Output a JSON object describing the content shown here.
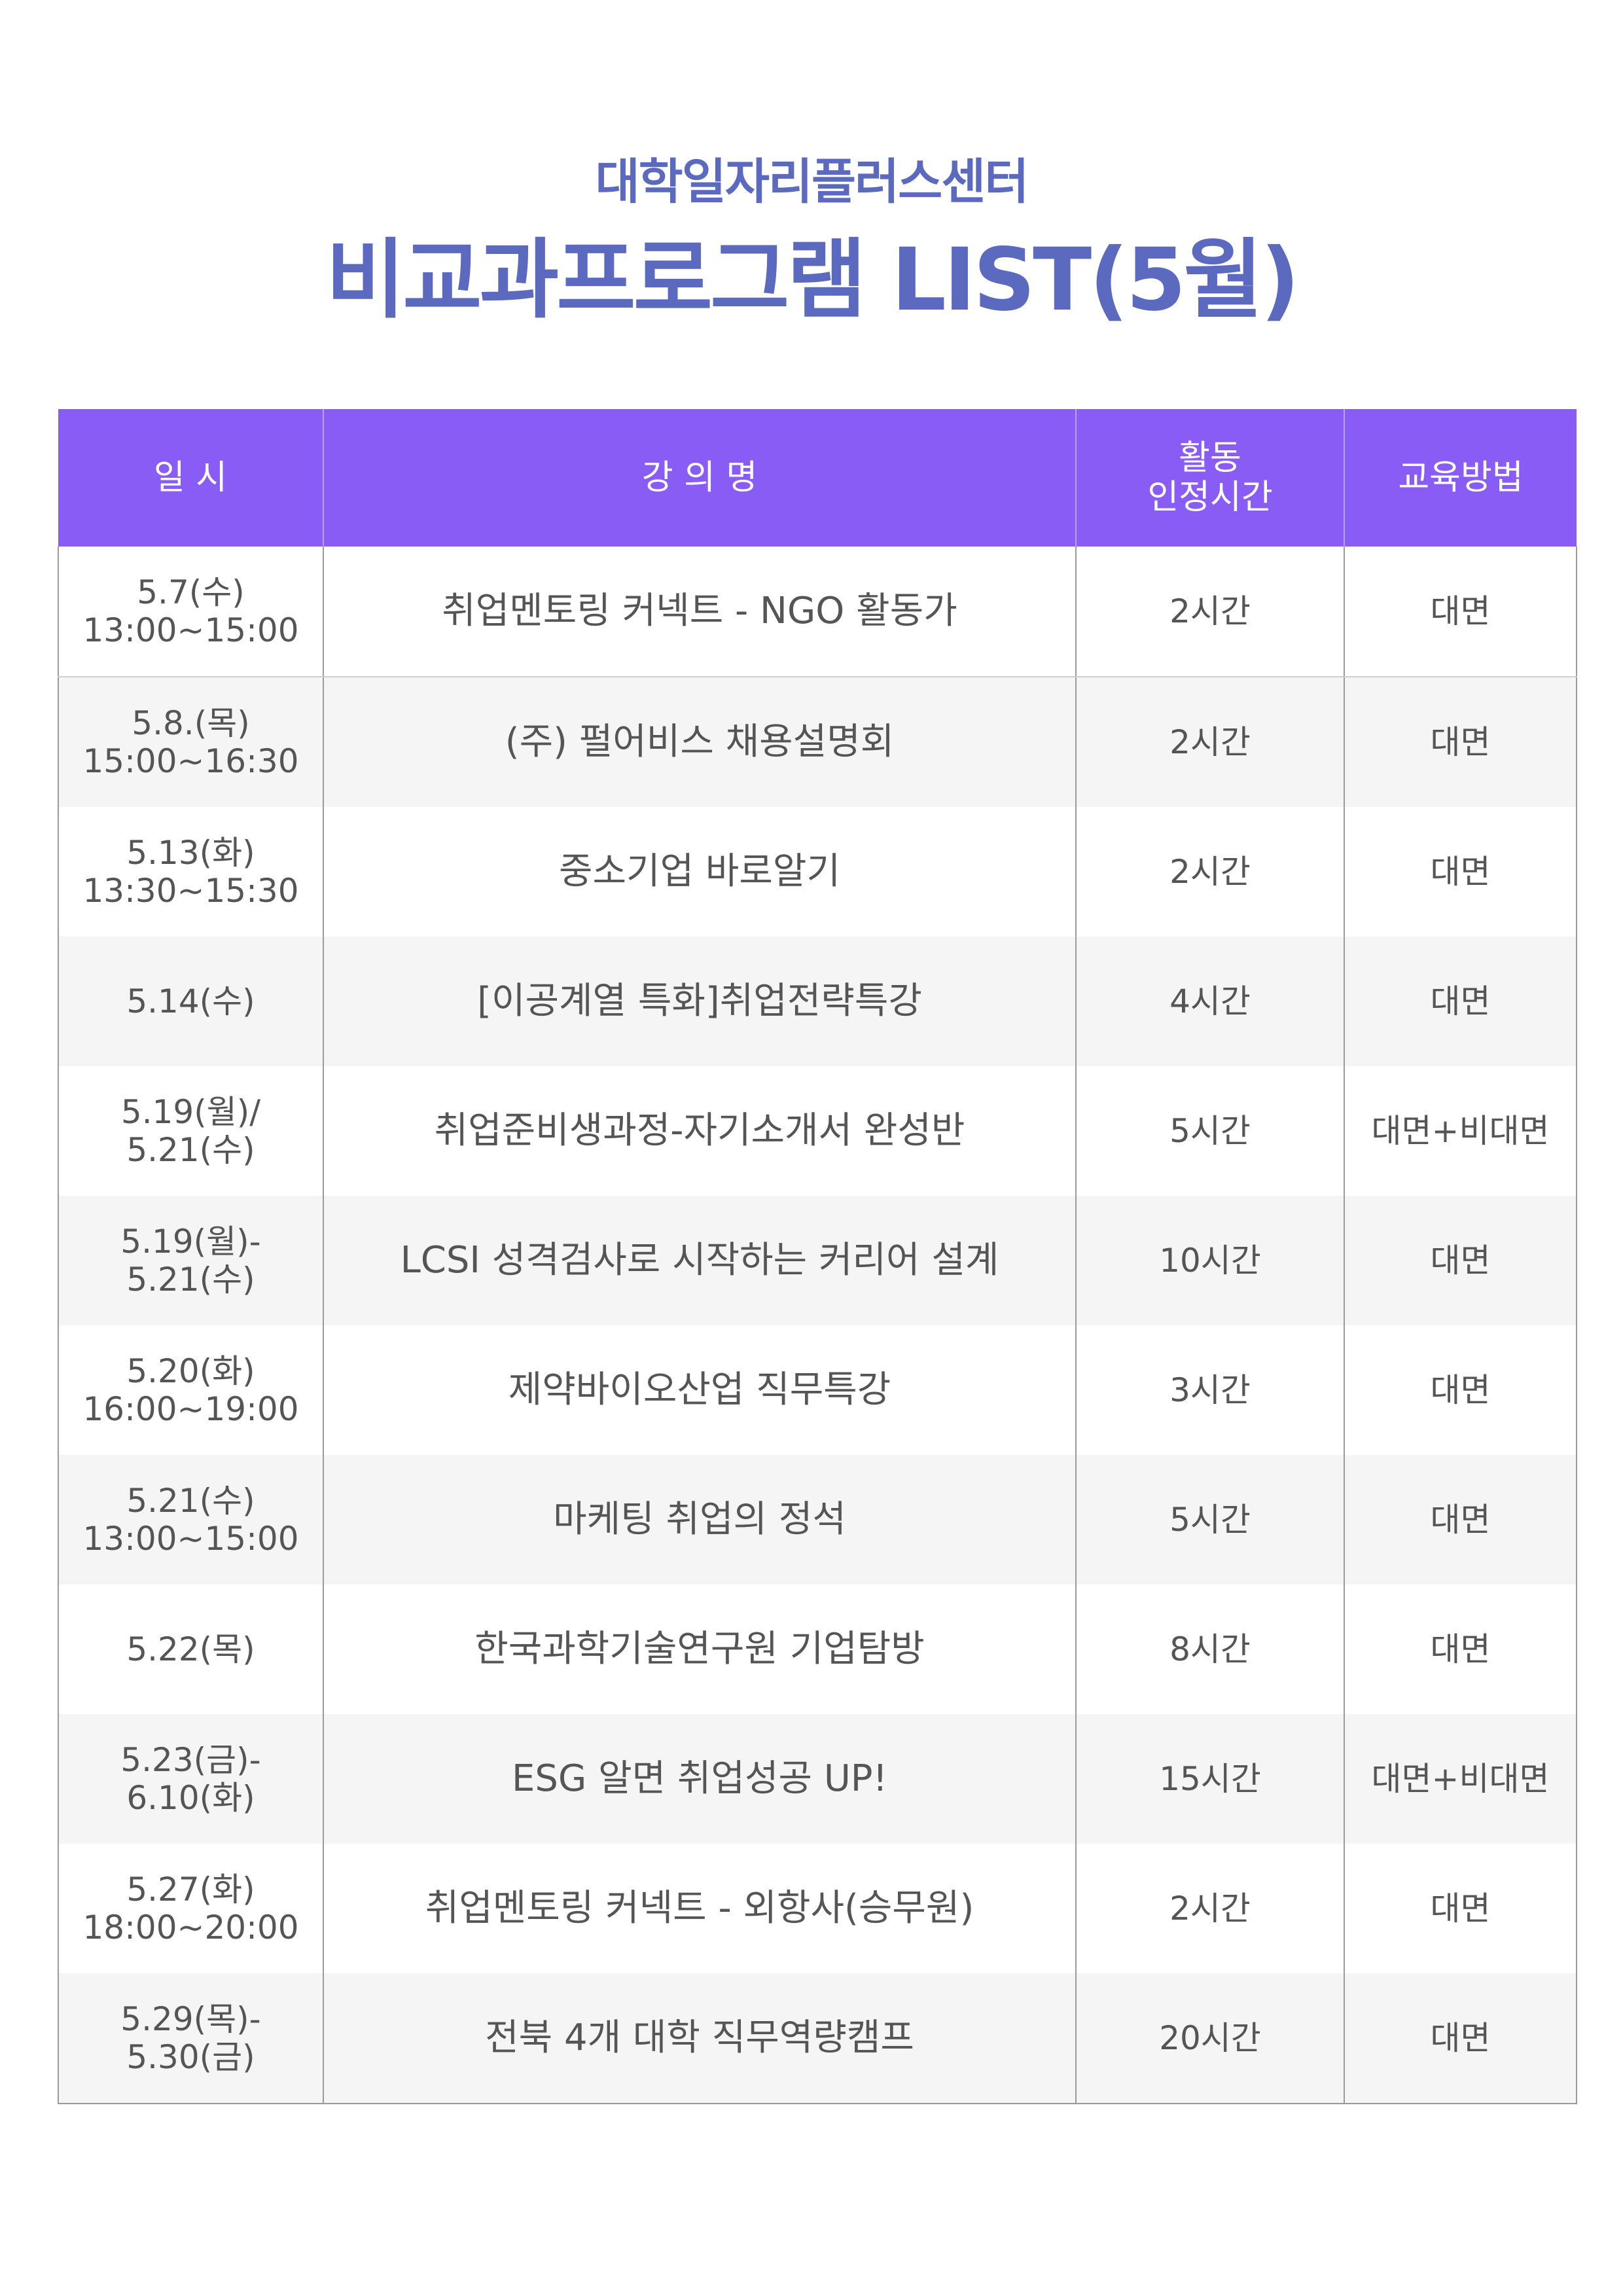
{
  "header": {
    "subtitle": "대학일자리플러스센터",
    "title": "비교과프로그램 LIST(5월)"
  },
  "table": {
    "columns": {
      "date": "일 시",
      "name": "강 의 명",
      "hours_line1": "활동",
      "hours_line2": "인정시간",
      "method": "교육방법"
    },
    "rows": [
      {
        "date1": "5.7(수)",
        "date2": "13:00~15:00",
        "name": "취업멘토링 커넥트 - NGO 활동가",
        "hours": "2시간",
        "method": "대면"
      },
      {
        "date1": "5.8.(목)",
        "date2": "15:00~16:30",
        "name": "(주) 펄어비스 채용설명회",
        "hours": "2시간",
        "method": "대면"
      },
      {
        "date1": "5.13(화)",
        "date2": "13:30~15:30",
        "name": "중소기업 바로알기",
        "hours": "2시간",
        "method": "대면"
      },
      {
        "date1": "5.14(수)",
        "date2": "",
        "name": "[이공계열 특화]취업전략특강",
        "hours": "4시간",
        "method": "대면"
      },
      {
        "date1": "5.19(월)/",
        "date2": "5.21(수)",
        "name": "취업준비생과정-자기소개서 완성반",
        "hours": "5시간",
        "method": "대면+비대면"
      },
      {
        "date1": "5.19(월)-",
        "date2": "5.21(수)",
        "name": "LCSI 성격검사로 시작하는 커리어 설계",
        "hours": "10시간",
        "method": "대면"
      },
      {
        "date1": "5.20(화)",
        "date2": "16:00~19:00",
        "name": "제약바이오산업 직무특강",
        "hours": "3시간",
        "method": "대면"
      },
      {
        "date1": "5.21(수)",
        "date2": "13:00~15:00",
        "name": "마케팅 취업의 정석",
        "hours": "5시간",
        "method": "대면"
      },
      {
        "date1": "5.22(목)",
        "date2": "",
        "name": "한국과학기술연구원 기업탐방",
        "hours": "8시간",
        "method": "대면"
      },
      {
        "date1": "5.23(금)-",
        "date2": "6.10(화)",
        "name": "ESG 알면 취업성공 UP!",
        "hours": "15시간",
        "method": "대면+비대면"
      },
      {
        "date1": "5.27(화)",
        "date2": "18:00~20:00",
        "name": "취업멘토링 커넥트 - 외항사(승무원)",
        "hours": "2시간",
        "method": "대면"
      },
      {
        "date1": "5.29(목)-",
        "date2": "5.30(금)",
        "name": "전북 4개 대학 직무역량캠프",
        "hours": "20시간",
        "method": "대면"
      }
    ]
  }
}
